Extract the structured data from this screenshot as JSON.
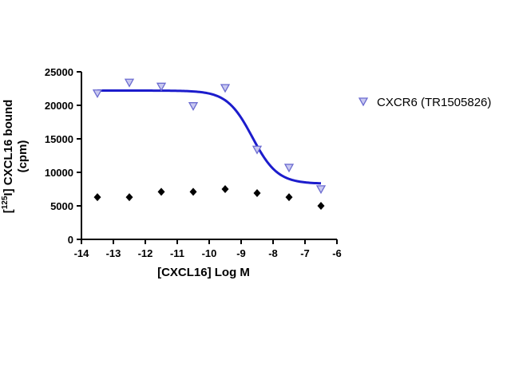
{
  "chart_data": {
    "type": "scatter",
    "xlabel": "[CXCL16] Log M",
    "ylabel_prefix": "[",
    "ylabel_sup": "125",
    "ylabel_line1_rest": "I] CXCL16 bound",
    "ylabel_line2": "(cpm)",
    "xlim": [
      -14,
      -6
    ],
    "ylim": [
      0,
      25000
    ],
    "x_ticks": [
      -14,
      -13,
      -12,
      -11,
      -10,
      -9,
      -8,
      -7,
      -6
    ],
    "x_tick_labels": [
      "-14",
      "-13",
      "-12",
      "-11",
      "-10",
      "-9",
      "-8",
      "-7",
      "-6"
    ],
    "y_ticks": [
      0,
      5000,
      10000,
      15000,
      20000,
      25000
    ],
    "y_tick_labels": [
      "0",
      "5000",
      "10000",
      "15000",
      "20000",
      "25000"
    ],
    "grid": false,
    "legend_position": "right",
    "series": [
      {
        "name": "CXCR6 (TR1505826)",
        "marker": "triangle-down",
        "color": "#7b7bd8",
        "x": [
          -13.5,
          -12.5,
          -11.5,
          -10.5,
          -9.5,
          -8.5,
          -7.5,
          -6.5
        ],
        "y": [
          21700,
          23300,
          22700,
          19800,
          22500,
          13300,
          10600,
          7400
        ]
      },
      {
        "marker": "diamond",
        "color": "#000000",
        "x": [
          -13.5,
          -12.5,
          -11.5,
          -10.5,
          -9.5,
          -8.5,
          -7.5,
          -6.5
        ],
        "y": [
          6300,
          6300,
          7100,
          7100,
          7500,
          6900,
          6300,
          5000
        ]
      }
    ],
    "fit_curve": {
      "color": "#1c1ccc",
      "top": 22200,
      "bottom": 8300,
      "log_ic50": -8.65,
      "hill_slope": -1.1,
      "x_range": [
        -13.5,
        -6.5
      ]
    }
  }
}
